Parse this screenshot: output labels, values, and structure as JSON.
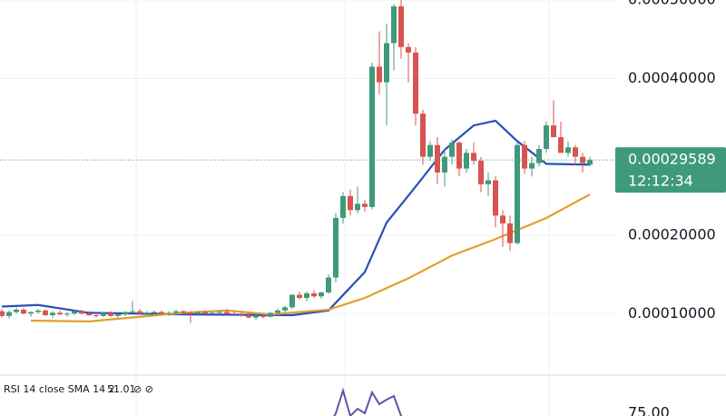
{
  "chart_data": {
    "type": "candlestick",
    "up_color": "#3f9a7c",
    "down_color": "#d9534f",
    "ylim": [
      2.5e-05,
      0.0005
    ],
    "yticks": [
      {
        "value": 0.0001,
        "label": "0.00010000"
      },
      {
        "value": 0.0002,
        "label": "0.00020000"
      },
      {
        "value": 0.0004,
        "label": "0.00040000"
      },
      {
        "value": 0.0005,
        "label": "0.00050000"
      }
    ],
    "ohlc": [
      [
        0.000103,
        0.000106,
        9.5e-05,
        9.7e-05
      ],
      [
        9.7e-05,
        0.000104,
        9.4e-05,
        0.000102
      ],
      [
        0.000102,
        0.000108,
        0.0001,
        0.000105
      ],
      [
        0.000105,
        0.000107,
        9.9e-05,
        0.0001
      ],
      [
        0.0001,
        0.000103,
        9.6e-05,
        0.000102
      ],
      [
        0.000102,
        0.000106,
        0.0001,
        0.000104
      ],
      [
        0.000104,
        0.000105,
        9.7e-05,
        9.8e-05
      ],
      [
        9.8e-05,
        0.000103,
        9.5e-05,
        0.000101
      ],
      [
        0.000101,
        0.000104,
        9.8e-05,
        9.9e-05
      ],
      [
        9.9e-05,
        0.000102,
        9.6e-05,
        0.0001
      ],
      [
        0.0001,
        0.000104,
        9.8e-05,
        0.000103
      ],
      [
        0.000103,
        0.000105,
        9.9e-05,
        0.0001
      ],
      [
        0.0001,
        0.000103,
        9.7e-05,
        9.8e-05
      ],
      [
        9.8e-05,
        0.000101,
        9.5e-05,
        9.7e-05
      ],
      [
        9.7e-05,
        0.000102,
        9.6e-05,
        0.000101
      ],
      [
        0.000101,
        0.000103,
        9.6e-05,
        9.7e-05
      ],
      [
        9.7e-05,
        0.0001,
        9.5e-05,
        9.9e-05
      ],
      [
        9.9e-05,
        0.000103,
        9.7e-05,
        0.000102
      ],
      [
        0.000102,
        0.000116,
        0.0001,
        0.000103
      ],
      [
        0.000103,
        0.000106,
        9.9e-05,
        0.0001
      ],
      [
        0.0001,
        0.000103,
        9.8e-05,
        0.000101
      ],
      [
        0.000101,
        0.000104,
        9.9e-05,
        0.000102
      ],
      [
        0.000102,
        0.000104,
        9.9e-05,
        0.0001
      ],
      [
        0.0001,
        0.000103,
        9.7e-05,
        0.000101
      ],
      [
        0.000101,
        0.000105,
        9.9e-05,
        0.000103
      ],
      [
        0.000103,
        0.000104,
        0.0001,
        0.000101
      ],
      [
        0.000101,
        0.000103,
        8.8e-05,
        0.0001
      ],
      [
        0.0001,
        0.000103,
        9.7e-05,
        0.000102
      ],
      [
        0.000102,
        0.000104,
        9.9e-05,
        0.0001
      ],
      [
        0.0001,
        0.000103,
        9.8e-05,
        0.000101
      ],
      [
        0.000101,
        0.000104,
        9.9e-05,
        0.000102
      ],
      [
        0.000102,
        0.000106,
        9.9e-05,
        0.0001
      ],
      [
        0.0001,
        0.000103,
        9.7e-05,
        9.9e-05
      ],
      [
        9.9e-05,
        0.000102,
        9.6e-05,
        9.8e-05
      ],
      [
        9.8e-05,
        0.000101,
        9.4e-05,
        9.5e-05
      ],
      [
        9.5e-05,
        9.9e-05,
        9.2e-05,
        9.7e-05
      ],
      [
        9.7e-05,
        0.0001,
        9.4e-05,
        9.6e-05
      ],
      [
        9.6e-05,
        0.000102,
        9.5e-05,
        0.000101
      ],
      [
        0.000101,
        0.000106,
        9.8e-05,
        0.000104
      ],
      [
        0.000104,
        0.00011,
        0.000101,
        0.000108
      ],
      [
        0.000108,
        0.000125,
        0.000106,
        0.000124
      ],
      [
        0.000124,
        0.000128,
        0.000118,
        0.00012
      ],
      [
        0.00012,
        0.000128,
        0.000116,
        0.000126
      ],
      [
        0.000126,
        0.00013,
        0.00012,
        0.000122
      ],
      [
        0.000122,
        0.000128,
        0.000119,
        0.000127
      ],
      [
        0.000127,
        0.00015,
        0.000125,
        0.000146
      ],
      [
        0.000146,
        0.000228,
        0.00014,
        0.000222
      ],
      [
        0.000222,
        0.000255,
        0.000215,
        0.00025
      ],
      [
        0.00025,
        0.000258,
        0.000225,
        0.000232
      ],
      [
        0.000232,
        0.000262,
        0.000228,
        0.00024
      ],
      [
        0.00024,
        0.000245,
        0.00023,
        0.000236
      ],
      [
        0.000236,
        0.00042,
        0.000233,
        0.000415
      ],
      [
        0.000415,
        0.00046,
        0.00038,
        0.000395
      ],
      [
        0.000395,
        0.00047,
        0.00034,
        0.000445
      ],
      [
        0.000445,
        0.000495,
        0.00041,
        0.000492
      ],
      [
        0.000492,
        0.0005,
        0.000425,
        0.00044
      ],
      [
        0.00044,
        0.000445,
        0.000395,
        0.000433
      ],
      [
        0.000433,
        0.00044,
        0.00034,
        0.000355
      ],
      [
        0.000355,
        0.00036,
        0.00029,
        0.0003
      ],
      [
        0.0003,
        0.00032,
        0.000295,
        0.000315
      ],
      [
        0.000315,
        0.000325,
        0.000265,
        0.00028
      ],
      [
        0.00028,
        0.00031,
        0.000262,
        0.0003
      ],
      [
        0.0003,
        0.000322,
        0.00029,
        0.000318
      ],
      [
        0.000318,
        0.00032,
        0.000275,
        0.000285
      ],
      [
        0.000285,
        0.00031,
        0.00028,
        0.000305
      ],
      [
        0.000305,
        0.000318,
        0.00029,
        0.000295
      ],
      [
        0.000295,
        0.0003,
        0.000255,
        0.000265
      ],
      [
        0.000265,
        0.00028,
        0.00025,
        0.00027
      ],
      [
        0.00027,
        0.000275,
        0.00021,
        0.000225
      ],
      [
        0.000225,
        0.000232,
        0.000185,
        0.000215
      ],
      [
        0.000215,
        0.000225,
        0.00018,
        0.00019
      ],
      [
        0.00019,
        0.000318,
        0.000188,
        0.000315
      ],
      [
        0.000315,
        0.00032,
        0.000278,
        0.000285
      ],
      [
        0.000285,
        0.0003,
        0.000275,
        0.000292
      ],
      [
        0.000292,
        0.000315,
        0.000288,
        0.00031
      ],
      [
        0.00031,
        0.000345,
        0.000305,
        0.00034
      ],
      [
        0.00034,
        0.000372,
        0.000325,
        0.000325
      ],
      [
        0.000325,
        0.000345,
        0.000305,
        0.000305
      ],
      [
        0.000305,
        0.00032,
        0.0003,
        0.000312
      ],
      [
        0.000312,
        0.000315,
        0.00029,
        0.0003
      ],
      [
        0.0003,
        0.000305,
        0.00028,
        0.000292
      ],
      [
        0.00029,
        0.0003,
        0.000288,
        0.00029589
      ]
    ],
    "series": [
      {
        "color": "#2b4fb8",
        "x": [
          0,
          5,
          12,
          25,
          40,
          45,
          50,
          53,
          57,
          61,
          65,
          68,
          71,
          75,
          81
        ],
        "values": [
          0.000109,
          0.000111,
          0.000101,
          9.9e-05,
          9.8e-05,
          0.000104,
          0.000153,
          0.000216,
          0.000262,
          0.000309,
          0.00034,
          0.000346,
          0.00032,
          0.000291,
          0.00029
        ]
      },
      {
        "color": "#e0a030",
        "x": [
          4,
          12,
          25,
          31,
          37,
          45,
          50,
          56,
          62,
          68,
          75,
          81
        ],
        "values": [
          9.1e-05,
          9e-05,
          0.000101,
          0.000104,
          9.9e-05,
          0.000105,
          0.00012,
          0.000145,
          0.000174,
          0.000195,
          0.000222,
          0.000252
        ]
      }
    ],
    "countdown": "12:12:34",
    "rsi": {
      "title": "RSI 14 close SMA 14 2",
      "value": "51.01",
      "color": "#6a4fa8",
      "ylim": [
        70,
        85
      ],
      "yticks": [
        {
          "value": 75,
          "label": "75.00"
        }
      ],
      "x": [
        45,
        46,
        47,
        48,
        49,
        50,
        51,
        52,
        53,
        54,
        55,
        56
      ],
      "values": [
        72,
        75,
        80,
        74.4,
        76,
        75,
        79.6,
        77,
        78,
        78.8,
        74.4,
        71
      ]
    }
  }
}
